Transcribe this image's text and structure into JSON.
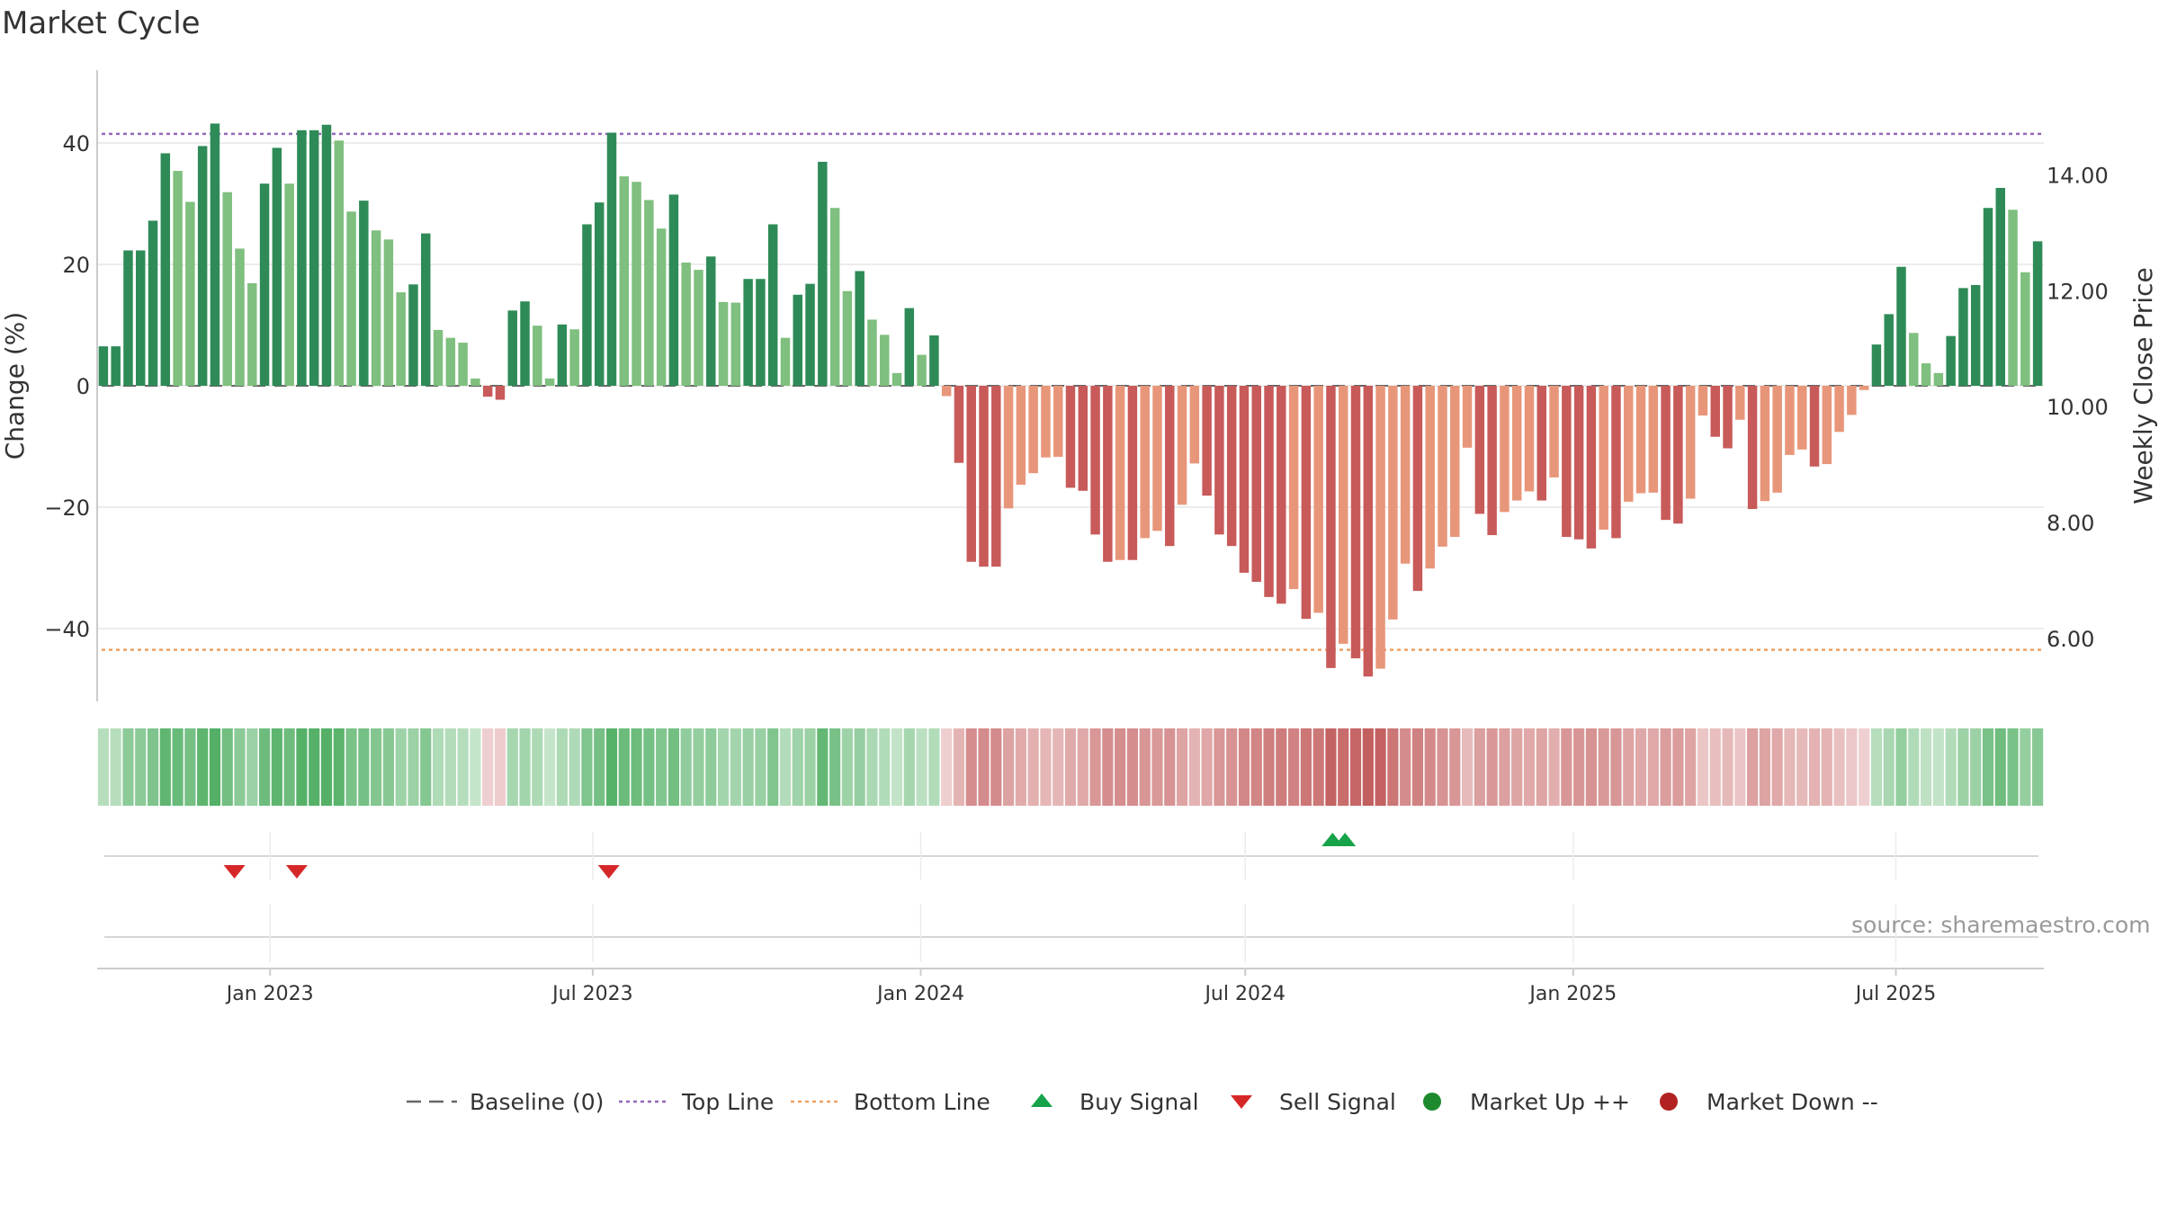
{
  "chart_data": {
    "type": "bar",
    "title": "Market Cycle",
    "ylabel": "Change (%)",
    "y2label": "Weekly Close Price",
    "ylim": [
      -52,
      52
    ],
    "y_ticks": [
      40,
      20,
      0,
      -20,
      -40
    ],
    "y_tick_labels": [
      "40",
      "20",
      "0",
      "−20",
      "−40"
    ],
    "y2lim": [
      4.91,
      15.81
    ],
    "y2_ticks": [
      14,
      12,
      10,
      8,
      6
    ],
    "y2_tick_labels": [
      "14.00",
      "12.00",
      "10.00",
      "8.00",
      "6.00"
    ],
    "x_start": "2022-09-26",
    "x_end": "2025-09-22",
    "x_ticks": [
      "2023-01-01",
      "2023-07-01",
      "2024-01-01",
      "2024-07-01",
      "2025-01-01",
      "2025-07-01"
    ],
    "x_tick_labels": [
      "Jan 2023",
      "Jul 2023",
      "Jan 2024",
      "Jul 2024",
      "Jan 2025",
      "Jul 2025"
    ],
    "top_line": 41.5,
    "bottom_line": -43.5,
    "baseline": 0,
    "values": [
      6.5,
      6.5,
      22.3,
      22.3,
      27.2,
      38.3,
      35.4,
      30.3,
      39.5,
      43.2,
      31.9,
      22.6,
      16.9,
      33.3,
      39.2,
      33.3,
      42.1,
      42.1,
      43.0,
      40.4,
      28.7,
      30.5,
      25.6,
      24.1,
      15.4,
      16.7,
      25.1,
      9.2,
      7.9,
      7.1,
      1.2,
      -1.8,
      -2.3,
      12.4,
      13.9,
      9.9,
      1.2,
      10.1,
      9.3,
      26.6,
      30.2,
      41.7,
      34.5,
      33.6,
      30.6,
      25.9,
      31.5,
      20.3,
      19.1,
      21.3,
      13.8,
      13.7,
      17.6,
      17.6,
      26.6,
      7.9,
      15.0,
      16.8,
      36.9,
      29.3,
      15.6,
      18.9,
      10.9,
      8.4,
      2.1,
      12.8,
      5.1,
      8.3,
      -1.7,
      -12.7,
      -29.0,
      -29.8,
      -29.8,
      -20.2,
      -16.3,
      -14.4,
      -11.8,
      -11.7,
      -16.8,
      -17.3,
      -24.5,
      -29.0,
      -28.7,
      -28.7,
      -25.1,
      -23.9,
      -26.4,
      -19.6,
      -12.8,
      -18.1,
      -24.5,
      -26.4,
      -30.8,
      -32.3,
      -34.8,
      -35.9,
      -33.5,
      -38.4,
      -37.4,
      -46.5,
      -42.5,
      -44.9,
      -47.9,
      -46.6,
      -38.5,
      -29.3,
      -33.8,
      -30.1,
      -26.5,
      -24.9,
      -10.2,
      -21.1,
      -24.6,
      -20.8,
      -18.9,
      -17.4,
      -18.9,
      -15.1,
      -24.9,
      -25.3,
      -26.8,
      -23.7,
      -25.1,
      -19.1,
      -17.7,
      -17.6,
      -22.1,
      -22.7,
      -18.6,
      -4.9,
      -8.4,
      -10.3,
      -5.6,
      -20.3,
      -19.0,
      -17.6,
      -11.4,
      -10.5,
      -13.3,
      -12.9,
      -7.6,
      -4.8,
      -0.7,
      6.8,
      11.8,
      19.6,
      8.7,
      3.7,
      2.1,
      8.2,
      16.1,
      16.6,
      29.3,
      32.6,
      29.0,
      18.7,
      23.8
    ],
    "sell_signals": [
      "2022-12-12",
      "2023-01-16",
      "2023-07-10"
    ],
    "buy_signals": [
      "2024-08-19",
      "2024-08-26"
    ],
    "legend": [
      {
        "label": "Baseline (0)",
        "symbol": "dash",
        "color": "#666666"
      },
      {
        "label": "Top Line",
        "symbol": "dot",
        "color": "#9467bd"
      },
      {
        "label": "Bottom Line",
        "symbol": "dot",
        "color": "#f0a060"
      },
      {
        "label": "Buy Signal",
        "symbol": "triangle-up",
        "color": "#16a34a"
      },
      {
        "label": "Sell Signal",
        "symbol": "triangle-down",
        "color": "#d62728"
      },
      {
        "label": "Market Up ++",
        "symbol": "circle",
        "color": "#1e8a2e"
      },
      {
        "label": "Market Down --",
        "symbol": "circle",
        "color": "#b22222"
      }
    ],
    "legend_position": "bottom-center"
  },
  "colors": {
    "up_strong": "#2e8b57",
    "up_light": "#7fbf7f",
    "down_strong": "#c85a5a",
    "down_light": "#e8967a",
    "top_line": "#9467bd",
    "bottom_line": "#f0a060"
  },
  "source": "source: sharemaestro.com"
}
